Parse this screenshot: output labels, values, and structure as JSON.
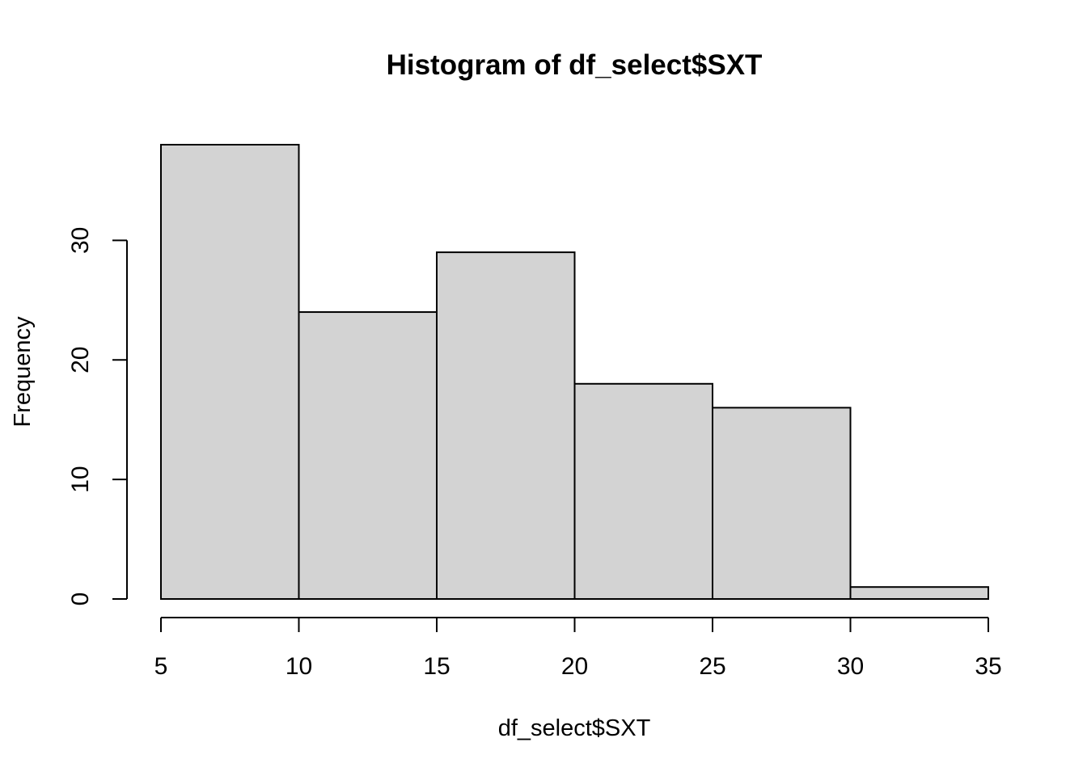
{
  "chart_data": {
    "type": "bar",
    "histogram": true,
    "title": "Histogram of df_select$SXT",
    "xlabel": "df_select$SXT",
    "ylabel": "Frequency",
    "bins": [
      {
        "x0": 5,
        "x1": 10,
        "value": 38
      },
      {
        "x0": 10,
        "x1": 15,
        "value": 24
      },
      {
        "x0": 15,
        "x1": 20,
        "value": 29
      },
      {
        "x0": 20,
        "x1": 25,
        "value": 18
      },
      {
        "x0": 25,
        "x1": 30,
        "value": 16
      },
      {
        "x0": 30,
        "x1": 35,
        "value": 1
      }
    ],
    "x_ticks": [
      5,
      10,
      15,
      20,
      25,
      30,
      35
    ],
    "y_ticks": [
      0,
      10,
      20,
      30
    ],
    "xlim": [
      5,
      35
    ],
    "ylim": [
      0,
      38
    ],
    "grid": false,
    "legend": "none",
    "colors": {
      "bar_fill": "#d3d3d3",
      "bar_stroke": "#000000"
    }
  }
}
